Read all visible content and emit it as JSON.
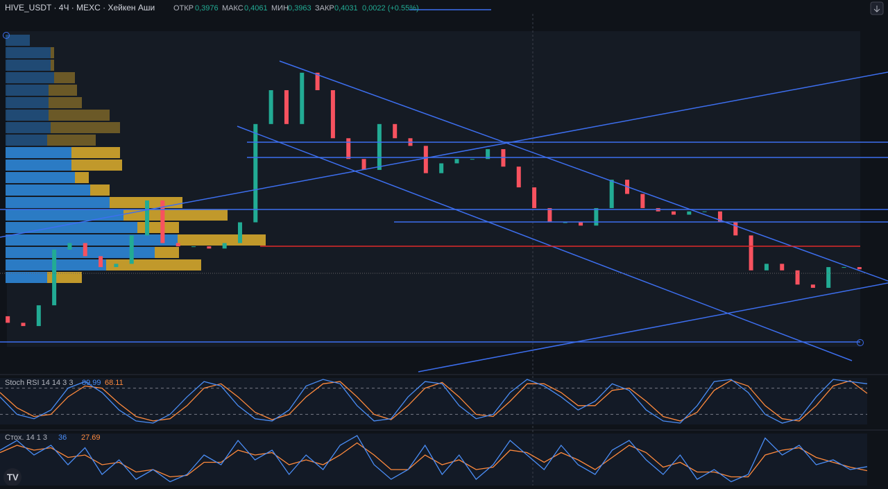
{
  "header": {
    "symbol": "HIVE_USDT · 4Ч · MEXC · Хейкен Аши",
    "open_label": "ОТКР",
    "open": "0,3976",
    "high_label": "МАКС",
    "high": "0,4061",
    "low_label": "МИН",
    "low": "0,3963",
    "close_label": "ЗАКР",
    "close": "0,4031",
    "change": "0,0022 (+0.55%)"
  },
  "chart_data": {
    "type": "candlestick",
    "ylim": [
      0.332,
      0.621
    ],
    "up_color": "#22ab94",
    "down_color": "#f7525f",
    "open": [
      0.36,
      0.354,
      0.351,
      0.37,
      0.421,
      0.427,
      0.415,
      0.405,
      0.408,
      0.434,
      0.466,
      0.427,
      0.424,
      0.424,
      0.422,
      0.427,
      0.446,
      0.536,
      0.567,
      0.536,
      0.583,
      0.567,
      0.523,
      0.504,
      0.494,
      0.536,
      0.523,
      0.516,
      0.491,
      0.5,
      0.504,
      0.504,
      0.513,
      0.497,
      0.478,
      0.459,
      0.446,
      0.446,
      0.443,
      0.459,
      0.485,
      0.472,
      0.459,
      0.456,
      0.453,
      0.456,
      0.456,
      0.446,
      0.434,
      0.402,
      0.408,
      0.402,
      0.389,
      0.386,
      0.405,
      0.405
    ],
    "close": [
      0.354,
      0.351,
      0.37,
      0.421,
      0.427,
      0.415,
      0.405,
      0.408,
      0.434,
      0.466,
      0.427,
      0.424,
      0.424,
      0.422,
      0.427,
      0.446,
      0.536,
      0.567,
      0.536,
      0.583,
      0.567,
      0.523,
      0.504,
      0.494,
      0.536,
      0.523,
      0.516,
      0.491,
      0.5,
      0.504,
      0.504,
      0.513,
      0.497,
      0.478,
      0.459,
      0.446,
      0.446,
      0.443,
      0.459,
      0.485,
      0.472,
      0.459,
      0.456,
      0.453,
      0.456,
      0.456,
      0.446,
      0.434,
      0.402,
      0.408,
      0.402,
      0.389,
      0.386,
      0.405,
      0.405,
      0.403
    ]
  },
  "volume_profile": {
    "buy_color": "#2e86d6",
    "sell_color": "#d4a72c",
    "buy": [
      35,
      65,
      65,
      70,
      62,
      62,
      62,
      65,
      60,
      95,
      95,
      100,
      122,
      150,
      170,
      190,
      248,
      215,
      145,
      60
    ],
    "sell": [
      0,
      5,
      5,
      30,
      41,
      48,
      88,
      100,
      70,
      70,
      73,
      20,
      28,
      105,
      150,
      60,
      127,
      35,
      137,
      50
    ]
  },
  "stoch_rsi": {
    "title": "Stoch RSI 14 14 3 3",
    "k_last": 89.99,
    "d_last": 68.11,
    "k_color": "#4a8df5",
    "d_color": "#ff8a3d",
    "ylim": [
      0,
      100
    ],
    "bands": [
      80,
      20
    ],
    "k": [
      60,
      20,
      10,
      30,
      80,
      95,
      70,
      30,
      5,
      0,
      20,
      60,
      95,
      85,
      40,
      10,
      5,
      30,
      85,
      100,
      90,
      40,
      5,
      10,
      60,
      95,
      90,
      40,
      10,
      20,
      70,
      100,
      85,
      60,
      30,
      50,
      90,
      75,
      30,
      5,
      0,
      40,
      95,
      100,
      70,
      20,
      0,
      10,
      60,
      100,
      95,
      89.99
    ],
    "d": [
      70,
      35,
      15,
      20,
      60,
      85,
      80,
      45,
      15,
      5,
      10,
      40,
      80,
      90,
      60,
      25,
      8,
      20,
      60,
      90,
      95,
      60,
      20,
      8,
      40,
      80,
      93,
      60,
      20,
      15,
      50,
      90,
      90,
      70,
      40,
      40,
      75,
      80,
      50,
      15,
      5,
      25,
      75,
      98,
      85,
      40,
      10,
      5,
      40,
      85,
      97,
      68.11
    ]
  },
  "stoch": {
    "title": "Стох. 14 1 3",
    "k_last": 36.0,
    "d_last": 27.69,
    "k_color": "#4a8df5",
    "d_color": "#ff8a3d",
    "ylim": [
      0,
      100
    ],
    "k": [
      70,
      90,
      60,
      80,
      40,
      75,
      20,
      50,
      10,
      30,
      5,
      20,
      60,
      40,
      90,
      50,
      70,
      20,
      60,
      30,
      80,
      100,
      40,
      10,
      30,
      80,
      20,
      60,
      10,
      40,
      90,
      60,
      30,
      80,
      40,
      20,
      70,
      90,
      50,
      20,
      60,
      10,
      30,
      5,
      20,
      95,
      60,
      80,
      40,
      50,
      30,
      36
    ],
    "d": [
      65,
      80,
      70,
      75,
      55,
      60,
      40,
      45,
      25,
      30,
      15,
      18,
      45,
      45,
      70,
      60,
      65,
      40,
      50,
      40,
      60,
      85,
      60,
      30,
      30,
      60,
      40,
      50,
      30,
      35,
      70,
      65,
      45,
      65,
      50,
      30,
      55,
      80,
      65,
      35,
      45,
      25,
      25,
      15,
      15,
      60,
      70,
      75,
      55,
      45,
      35,
      27.69
    ]
  }
}
